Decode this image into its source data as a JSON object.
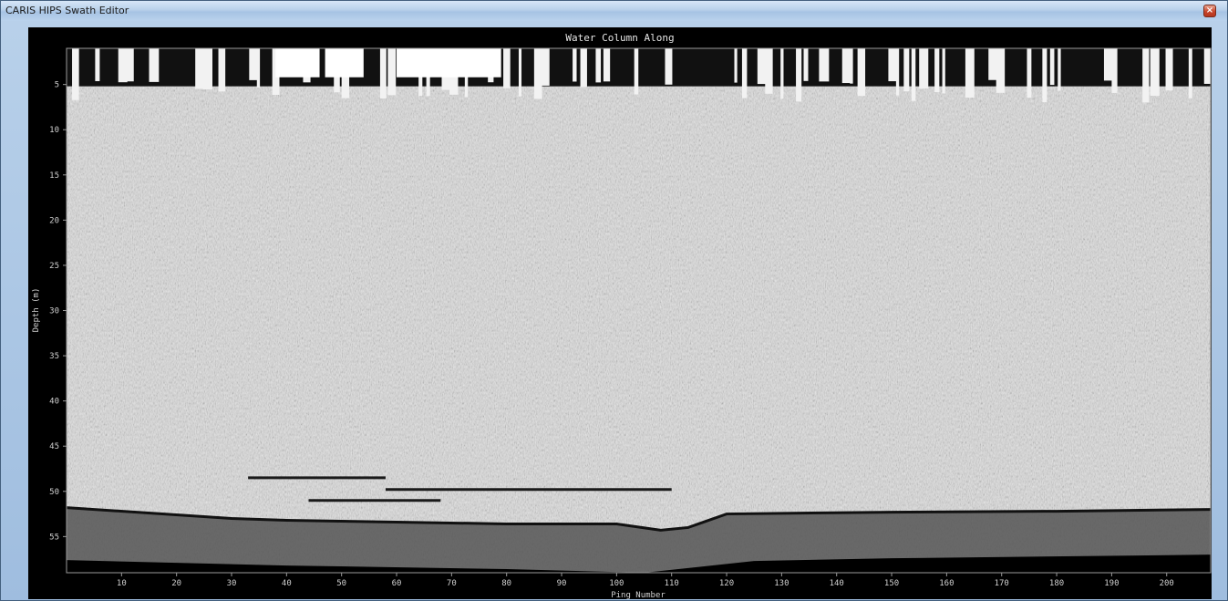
{
  "window": {
    "title": "CARIS HIPS Swath Editor",
    "close_glyph": "×",
    "close_icon": "close-icon"
  },
  "plot": {
    "title": "Water Column Along",
    "xlabel": "Ping Number",
    "ylabel": "Depth (m)",
    "colors": {
      "background": "#000000",
      "water": "#d8d8d8",
      "seabed": "#555555",
      "noise": "#000000"
    }
  },
  "chart_data": {
    "type": "heatmap",
    "title": "Water Column Along",
    "xlabel": "Ping Number",
    "ylabel": "Depth (m)",
    "xlim": [
      0,
      208
    ],
    "ylim": [
      1,
      59
    ],
    "y_inverted": true,
    "x_ticks": [
      10,
      20,
      30,
      40,
      50,
      60,
      70,
      80,
      90,
      100,
      110,
      120,
      130,
      140,
      150,
      160,
      170,
      180,
      190,
      200
    ],
    "y_ticks": [
      5,
      10,
      15,
      20,
      25,
      30,
      35,
      40,
      45,
      50,
      55
    ],
    "seafloor_depth": [
      [
        0,
        51.8
      ],
      [
        30,
        53
      ],
      [
        40,
        53.2
      ],
      [
        60,
        53.4
      ],
      [
        80,
        53.6
      ],
      [
        100,
        53.6
      ],
      [
        108,
        54.3
      ],
      [
        113,
        54
      ],
      [
        120,
        52.5
      ],
      [
        150,
        52.3
      ],
      [
        180,
        52.2
      ],
      [
        208,
        52
      ]
    ],
    "wreck_returns": [
      {
        "from_ping": 33,
        "to_ping": 58,
        "depth": 48.5
      },
      {
        "from_ping": 58,
        "to_ping": 110,
        "depth": 49.8
      },
      {
        "from_ping": 44,
        "to_ping": 68,
        "depth": 51
      }
    ],
    "grid": false
  }
}
